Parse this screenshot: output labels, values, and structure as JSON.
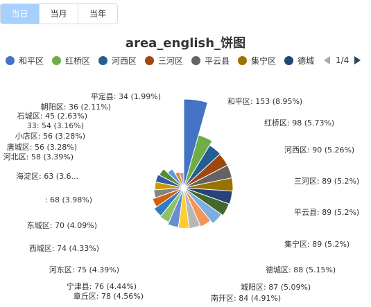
{
  "tabs": [
    {
      "label": "当日",
      "active": true
    },
    {
      "label": "当月",
      "active": false
    },
    {
      "label": "当年",
      "active": false
    }
  ],
  "legend": {
    "page_indicator": "1/4",
    "prev_icon": "triangle-left-icon",
    "next_icon": "triangle-right-icon"
  },
  "chart_data": {
    "type": "pie",
    "title": "area_english_饼图",
    "series": [
      {
        "name": "和平区",
        "value": 153,
        "percent": "8.95%",
        "color": "#4472c4",
        "label": "和平区: 153 (8.95%)"
      },
      {
        "name": "红桥区",
        "value": 98,
        "percent": "5.73%",
        "color": "#70ad47",
        "label": "红桥区: 98 (5.73%)"
      },
      {
        "name": "河西区",
        "value": 90,
        "percent": "5.26%",
        "color": "#255e91",
        "label": "河西区: 90 (5.26%)"
      },
      {
        "name": "三河区",
        "value": 89,
        "percent": "5.2%",
        "color": "#9e480e",
        "label": "三河区: 89 (5.2%)"
      },
      {
        "name": "平云县",
        "value": 89,
        "percent": "5.2%",
        "color": "#636363",
        "label": "平云县: 89 (5.2%)"
      },
      {
        "name": "集宁区",
        "value": 89,
        "percent": "5.2%",
        "color": "#997300",
        "label": "集宁区: 89 (5.2%)"
      },
      {
        "name": "德城区",
        "value": 88,
        "percent": "5.15%",
        "color": "#264478",
        "label": "德城区: 88 (5.15%)"
      },
      {
        "name": "城阳区",
        "value": 87,
        "percent": "5.09%",
        "color": "#43682b",
        "label": "城阳区: 87 (5.09%)"
      },
      {
        "name": "南开区",
        "value": 84,
        "percent": "4.91%",
        "color": "#7cafdd",
        "label": "南开区: 84 (4.91%)"
      },
      {
        "name": "章丘区",
        "value": 78,
        "percent": "4.56%",
        "color": "#f1975a",
        "label": "章丘区: 78 (4.56%)"
      },
      {
        "name": "宁津县",
        "value": 76,
        "percent": "4.44%",
        "color": "#b7b7b7",
        "label": "宁津县: 76 (4.44%)"
      },
      {
        "name": "河东区",
        "value": 75,
        "percent": "4.39%",
        "color": "#ffcd33",
        "label": "河东区: 75 (4.39%)"
      },
      {
        "name": "西城区",
        "value": 74,
        "percent": "4.33%",
        "color": "#698ed0",
        "label": "西城区: 74 (4.33%)"
      },
      {
        "name": "东城区",
        "value": 70,
        "percent": "4.09%",
        "color": "#8cc168",
        "label": "东城区: 70 (4.09%)"
      },
      {
        "name": "",
        "value": 68,
        "percent": "3.98%",
        "color": "#327dc2",
        "label": ": 68 (3.98%)"
      },
      {
        "name": "海淀区",
        "value": 63,
        "percent": "3.6…",
        "color": "#d26012",
        "label": "海淀区: 63 (3.6..."
      },
      {
        "name": "河北区",
        "value": 58,
        "percent": "3.39%",
        "color": "#848484",
        "label": "河北区: 58 (3.39%)"
      },
      {
        "name": "唐城区",
        "value": 56,
        "percent": "3.28%",
        "color": "#cc9a00",
        "label": "唐城区: 56 (3.28%)"
      },
      {
        "name": "小店区",
        "value": 56,
        "percent": "3.28%",
        "color": "#335aa1",
        "label": "小店区: 56 (3.28%)"
      },
      {
        "name": "33",
        "value": 54,
        "percent": "3.16%",
        "color": "#5a8a39",
        "label": "33: 54 (3.16%)"
      },
      {
        "name": "石城区",
        "value": 45,
        "percent": "2.63%",
        "color": "#5b9bd5",
        "label": "石城区: 45 (2.63%)"
      },
      {
        "name": "朝阳区",
        "value": 36,
        "percent": "2.11%",
        "color": "#ed7d31",
        "label": "朝阳区: 36 (2.11%)"
      },
      {
        "name": "平定县",
        "value": 34,
        "percent": "1.99%",
        "color": "#a5a5a5",
        "label": "平定县: 34 (1.99%)"
      }
    ],
    "legend_visible": [
      "和平区",
      "红桥区",
      "河西区",
      "三河区",
      "平云县",
      "集宁区",
      "德城"
    ],
    "legend_placement": "top"
  }
}
